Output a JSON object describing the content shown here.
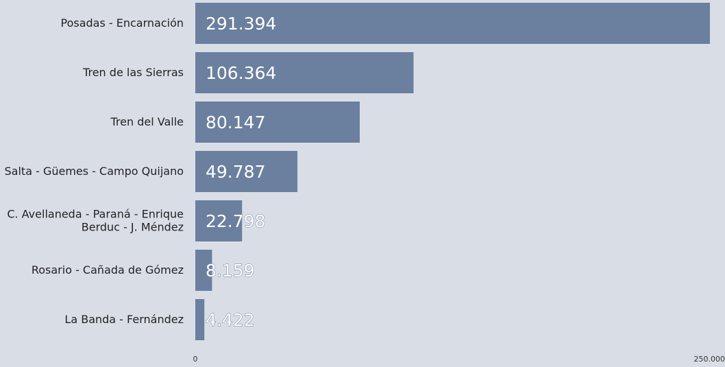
{
  "chart_data": {
    "type": "bar",
    "orientation": "horizontal",
    "categories": [
      "Posadas - Encarnación",
      "Tren de las Sierras",
      "Tren del Valle",
      "Salta - Güemes - Campo Quijano",
      "C. Avellaneda - Paraná - Enrique Berduc - J. Méndez",
      "Rosario - Cañada de Gómez",
      "La Banda - Fernández"
    ],
    "values": [
      291394,
      106364,
      80147,
      49787,
      22798,
      8159,
      4422
    ],
    "value_labels": [
      "291.394",
      "106.364",
      "80.147",
      "49.787",
      "22.798",
      "8.159",
      "4.422"
    ],
    "color": "#6b7f9e",
    "xlim": [
      0,
      250834
    ],
    "xticks": [
      0,
      {
        "value": 250000,
        "label": "250.000"
      }
    ]
  }
}
